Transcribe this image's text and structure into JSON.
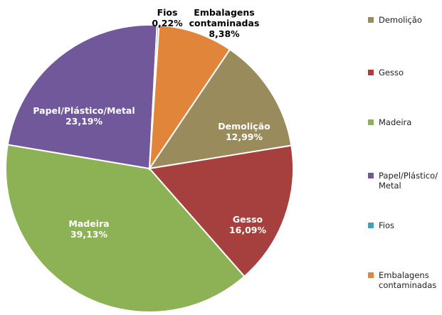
{
  "chart_data": {
    "type": "pie",
    "slices": [
      {
        "label": "Demolição",
        "value": 12.99,
        "value_label": "12,99%",
        "color": "#9A8B5C",
        "label_color": "#ffffff"
      },
      {
        "label": "Gesso",
        "value": 16.09,
        "value_label": "16,09%",
        "color": "#A5403E",
        "label_color": "#ffffff"
      },
      {
        "label": "Madeira",
        "value": 39.13,
        "value_label": "39,13%",
        "color": "#8DB256",
        "label_color": "#ffffff"
      },
      {
        "label": "Papel/Plástico/Metal",
        "value": 23.19,
        "value_label": "23,19%",
        "color": "#71589B",
        "label_color": "#ffffff"
      },
      {
        "label": "Fios",
        "value": 0.22,
        "value_label": "0,22%",
        "color": "#3CA3BE",
        "label_color": "#000000"
      },
      {
        "label": "Embalagens contaminadas",
        "value": 8.38,
        "value_label": "8,38%",
        "color": "#E0853A",
        "label_color": "#000000"
      }
    ],
    "legend": {
      "position": "right",
      "entries": [
        "Demolição",
        "Gesso",
        "Madeira",
        "Papel/Plástico/\nMetal",
        "Fios",
        "Embalagens\ncontaminadas"
      ]
    }
  }
}
